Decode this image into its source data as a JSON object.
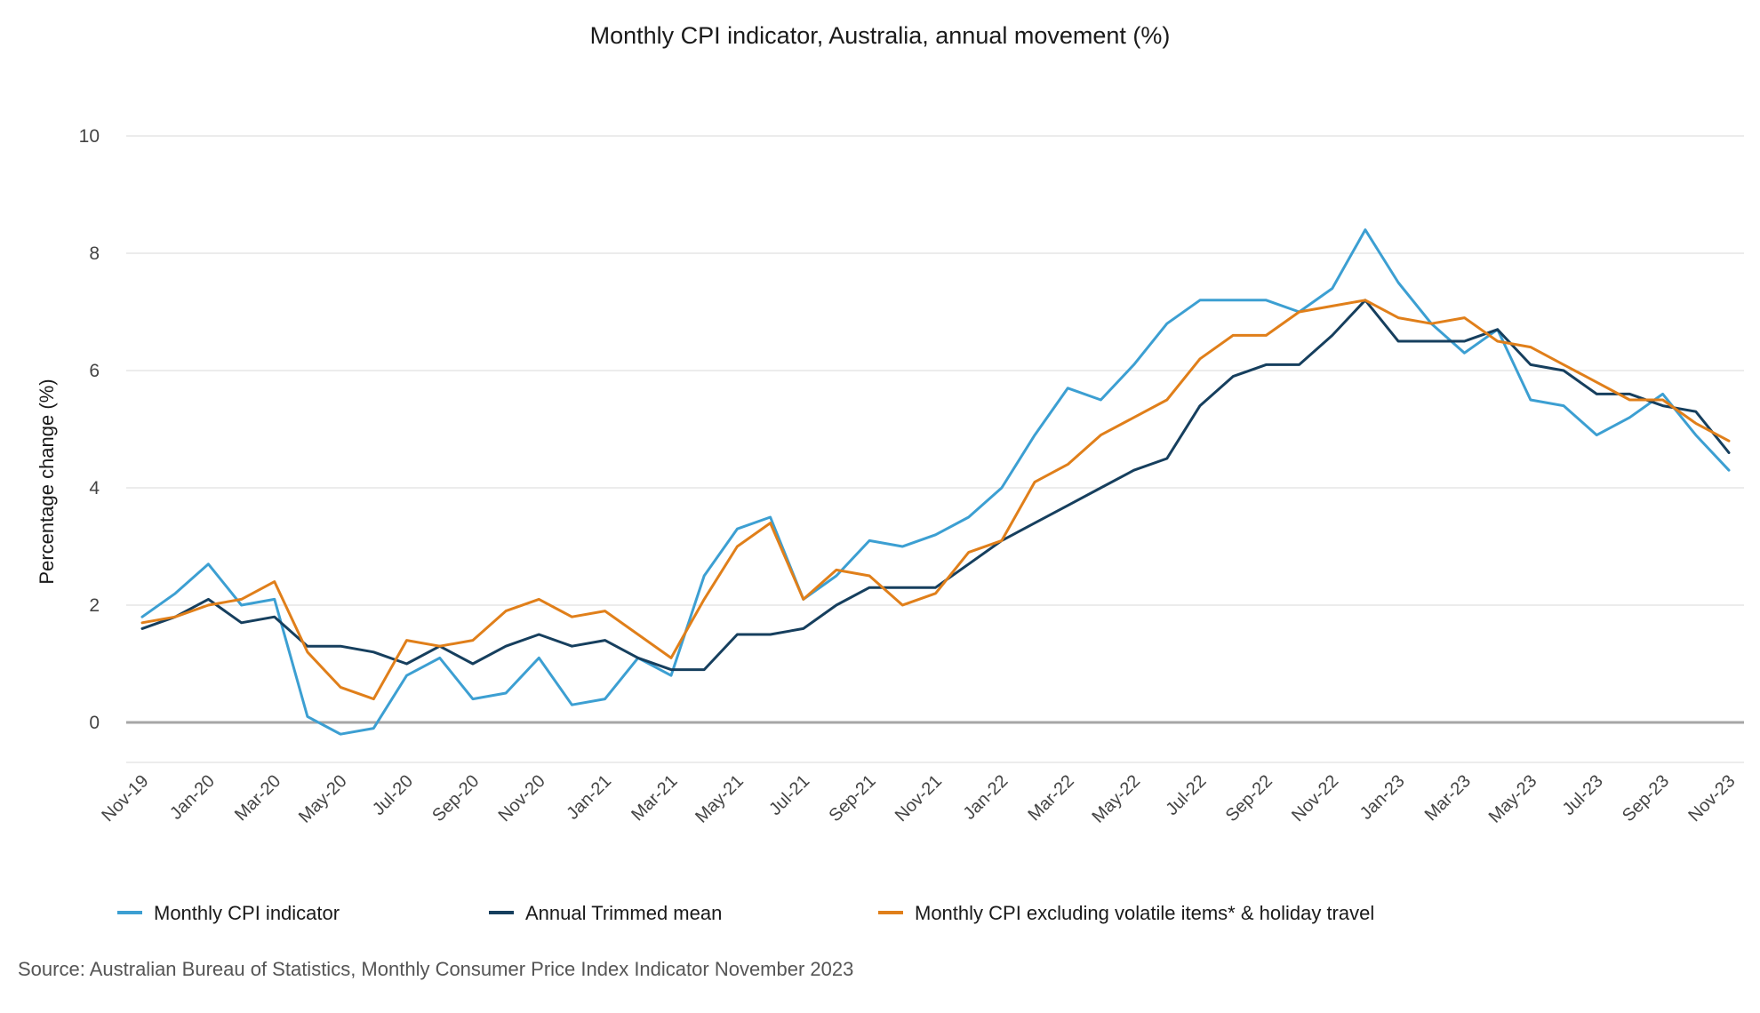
{
  "chart_data": {
    "type": "line",
    "title": "Monthly CPI indicator, Australia, annual movement (%)",
    "ylabel": "Percentage change (%)",
    "xlabel": "",
    "ylim": [
      -0.6,
      10
    ],
    "yticks": [
      0,
      2,
      4,
      6,
      8,
      10
    ],
    "grid": true,
    "legend_position": "bottom",
    "tick_labels": [
      "Nov-19",
      "Jan-20",
      "Mar-20",
      "May-20",
      "Jul-20",
      "Sep-20",
      "Nov-20",
      "Jan-21",
      "Mar-21",
      "May-21",
      "Jul-21",
      "Sep-21",
      "Nov-21",
      "Jan-22",
      "Mar-22",
      "May-22",
      "Jul-22",
      "Sep-22",
      "Nov-22",
      "Jan-23",
      "Mar-23",
      "May-23",
      "Jul-23",
      "Sep-23",
      "Nov-23"
    ],
    "categories": [
      "Nov-19",
      "Dec-19",
      "Jan-20",
      "Feb-20",
      "Mar-20",
      "Apr-20",
      "May-20",
      "Jun-20",
      "Jul-20",
      "Aug-20",
      "Sep-20",
      "Oct-20",
      "Nov-20",
      "Dec-20",
      "Jan-21",
      "Feb-21",
      "Mar-21",
      "Apr-21",
      "May-21",
      "Jun-21",
      "Jul-21",
      "Aug-21",
      "Sep-21",
      "Oct-21",
      "Nov-21",
      "Dec-21",
      "Jan-22",
      "Feb-22",
      "Mar-22",
      "Apr-22",
      "May-22",
      "Jun-22",
      "Jul-22",
      "Aug-22",
      "Sep-22",
      "Oct-22",
      "Nov-22",
      "Dec-22",
      "Jan-23",
      "Feb-23",
      "Mar-23",
      "Apr-23",
      "May-23",
      "Jun-23",
      "Jul-23",
      "Aug-23",
      "Sep-23",
      "Oct-23",
      "Nov-23"
    ],
    "series": [
      {
        "name": "Monthly CPI indicator",
        "color": "#3c9fd2",
        "values": [
          1.8,
          2.2,
          2.7,
          2.0,
          2.1,
          0.1,
          -0.2,
          -0.1,
          0.8,
          1.1,
          0.4,
          0.5,
          1.1,
          0.3,
          0.4,
          1.1,
          0.8,
          2.5,
          3.3,
          3.5,
          2.1,
          2.5,
          3.1,
          3.0,
          3.2,
          3.5,
          4.0,
          4.9,
          5.7,
          5.5,
          6.1,
          6.8,
          7.2,
          7.2,
          7.2,
          7.0,
          7.4,
          8.4,
          7.5,
          6.8,
          6.3,
          6.7,
          5.5,
          5.4,
          4.9,
          5.2,
          5.6,
          4.9,
          4.3
        ]
      },
      {
        "name": "Annual Trimmed mean",
        "color": "#163f5e",
        "values": [
          1.6,
          1.8,
          2.1,
          1.7,
          1.8,
          1.3,
          1.3,
          1.2,
          1.0,
          1.3,
          1.0,
          1.3,
          1.5,
          1.3,
          1.4,
          1.1,
          0.9,
          0.9,
          1.5,
          1.5,
          1.6,
          2.0,
          2.3,
          2.3,
          2.3,
          2.7,
          3.1,
          3.4,
          3.7,
          4.0,
          4.3,
          4.5,
          5.4,
          5.9,
          6.1,
          6.1,
          6.6,
          7.2,
          6.5,
          6.5,
          6.5,
          6.7,
          6.1,
          6.0,
          5.6,
          5.6,
          5.4,
          5.3,
          4.6
        ]
      },
      {
        "name": "Monthly CPI excluding volatile items* & holiday travel",
        "color": "#e07f1a",
        "values": [
          1.7,
          1.8,
          2.0,
          2.1,
          2.4,
          1.2,
          0.6,
          0.4,
          1.4,
          1.3,
          1.4,
          1.9,
          2.1,
          1.8,
          1.9,
          1.5,
          1.1,
          2.1,
          3.0,
          3.4,
          2.1,
          2.6,
          2.5,
          2.0,
          2.2,
          2.9,
          3.1,
          4.1,
          4.4,
          4.9,
          5.2,
          5.5,
          6.2,
          6.6,
          6.6,
          7.0,
          7.1,
          7.2,
          6.9,
          6.8,
          6.9,
          6.5,
          6.4,
          6.1,
          5.8,
          5.5,
          5.5,
          5.1,
          4.8
        ]
      }
    ]
  },
  "source": "Source: Australian Bureau of Statistics, Monthly Consumer Price Index Indicator November 2023"
}
